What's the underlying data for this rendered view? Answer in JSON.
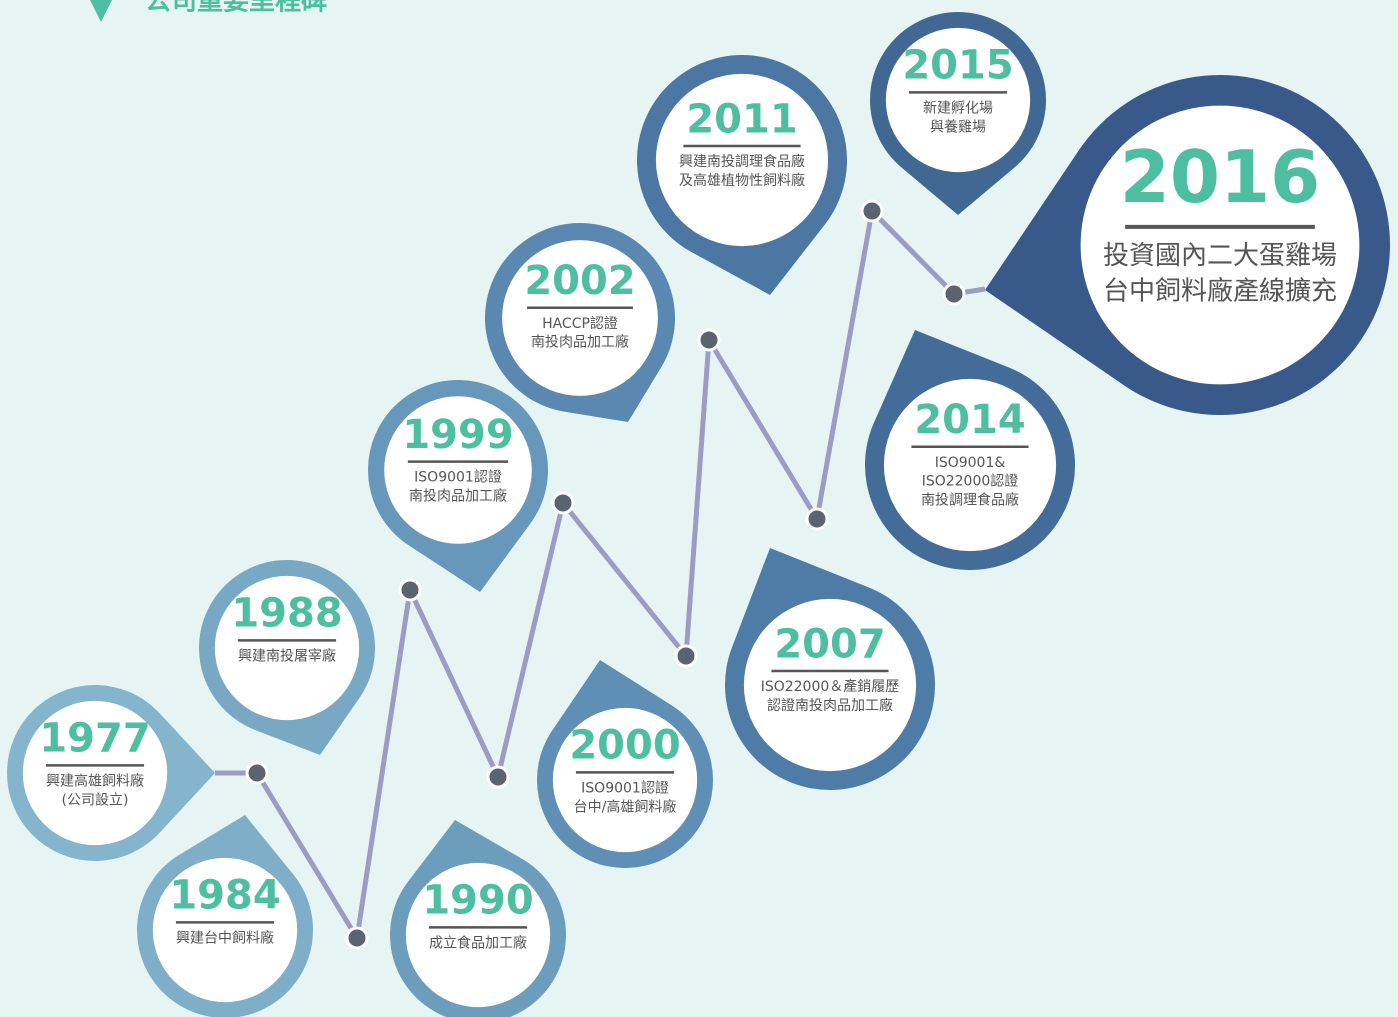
{
  "header": {
    "title": "公司重要里程碑"
  },
  "nodes": [
    {
      "year": "1977",
      "lines": [
        "興建高雄飼料廠",
        "(公司設立)"
      ]
    },
    {
      "year": "1984",
      "lines": [
        "興建台中飼料廠"
      ]
    },
    {
      "year": "1988",
      "lines": [
        "興建南投屠宰廠"
      ]
    },
    {
      "year": "1990",
      "lines": [
        "成立食品加工廠"
      ]
    },
    {
      "year": "1999",
      "lines": [
        "ISO9001認證",
        "南投肉品加工廠"
      ]
    },
    {
      "year": "2000",
      "lines": [
        "ISO9001認證",
        "台中/高雄飼料廠"
      ]
    },
    {
      "year": "2002",
      "lines": [
        "HACCP認證",
        "南投肉品加工廠"
      ]
    },
    {
      "year": "2007",
      "lines": [
        "ISO22000＆產銷履歷",
        "認證南投肉品加工廠"
      ]
    },
    {
      "year": "2011",
      "lines": [
        "興建南投調理食品廠",
        "及高雄植物性飼料廠"
      ]
    },
    {
      "year": "2014",
      "lines": [
        "ISO9001&",
        "ISO22000認證",
        "南投調理食品廠"
      ]
    },
    {
      "year": "2015",
      "lines": [
        "新建孵化場",
        "與養雞場"
      ]
    },
    {
      "year": "2016",
      "lines": [
        "投資國內二大蛋雞場",
        "台中飼料廠產線擴充"
      ]
    }
  ]
}
